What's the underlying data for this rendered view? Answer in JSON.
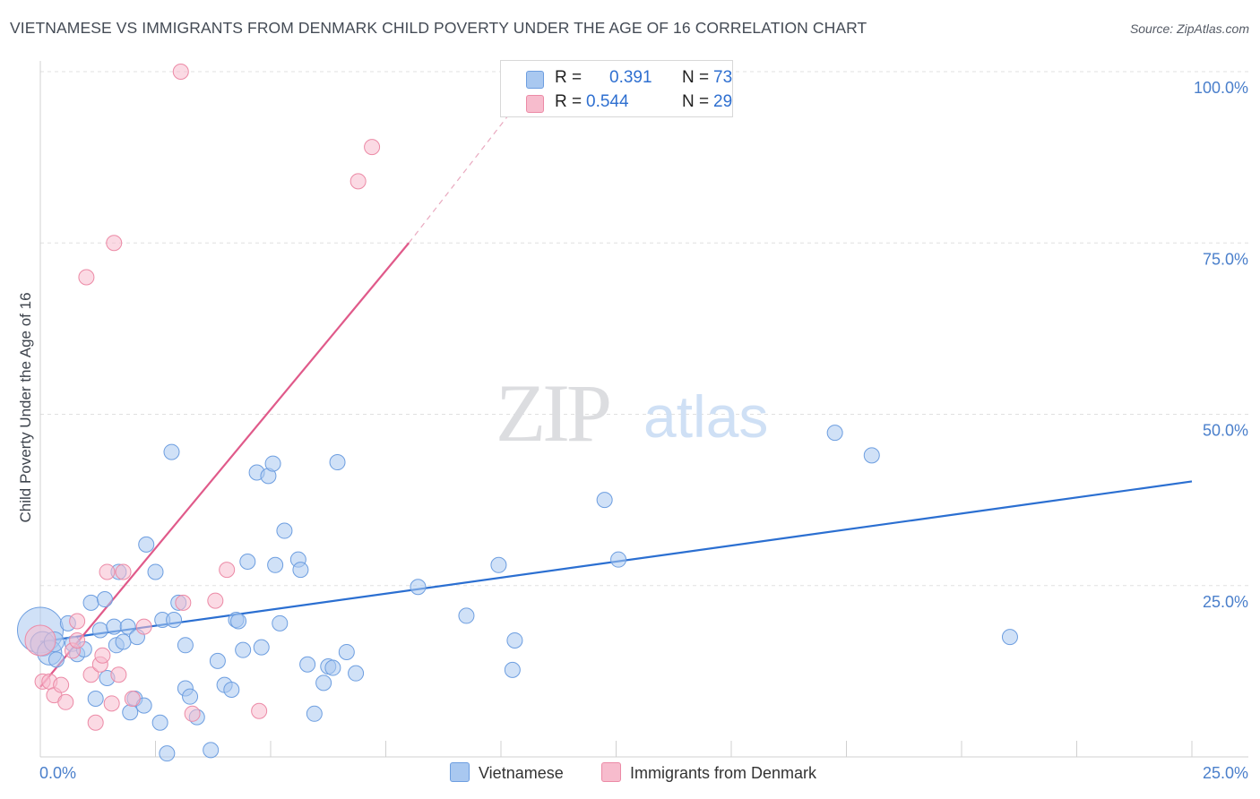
{
  "title": "VIETNAMESE VS IMMIGRANTS FROM DENMARK CHILD POVERTY UNDER THE AGE OF 16 CORRELATION CHART",
  "source": "Source: ZipAtlas.com",
  "watermark": {
    "zip": "ZIP",
    "atlas": "atlas"
  },
  "legend": {
    "rows": [
      {
        "r_label": "R =",
        "r_value": "0.391",
        "n_label": "N =",
        "n_value": "73",
        "color": "#a9c8f0",
        "border": "#6d9ee0"
      },
      {
        "r_label": "R =",
        "r_value": "0.544",
        "n_label": "N =",
        "n_value": "29",
        "color": "#f7bccd",
        "border": "#ec8aa6"
      }
    ]
  },
  "bottom_legend": [
    {
      "label": "Vietnamese",
      "color": "#a9c8f0",
      "border": "#6d9ee0"
    },
    {
      "label": "Immigrants from Denmark",
      "color": "#f7bccd",
      "border": "#ec8aa6"
    }
  ],
  "chart_data": {
    "type": "scatter",
    "title": "VIETNAMESE VS IMMIGRANTS FROM DENMARK CHILD POVERTY UNDER THE AGE OF 16 CORRELATION CHART",
    "xlabel": "",
    "ylabel": "Child Poverty Under the Age of 16",
    "xlim": [
      0,
      25
    ],
    "ylim": [
      0,
      100
    ],
    "x_ticks": [
      "0.0%",
      "25.0%"
    ],
    "y_ticks": [
      {
        "value": 25,
        "label": "25.0%"
      },
      {
        "value": 50,
        "label": "50.0%"
      },
      {
        "value": 75,
        "label": "75.0%"
      },
      {
        "value": 100,
        "label": "100.0%"
      }
    ],
    "grid": true,
    "series": [
      {
        "name": "Vietnamese",
        "color": "#6d9ee0",
        "fill": "#a9c8f0",
        "trend": {
          "x0": 0,
          "y0": 16.8,
          "x1": 25,
          "y1": 40.2,
          "color": "#2b6fd1"
        },
        "points": [
          [
            0.0,
            18.5,
            3.0
          ],
          [
            0.05,
            16.5,
            1.6
          ],
          [
            0.2,
            15.2,
            1.6
          ],
          [
            0.3,
            16.8,
            1.3
          ],
          [
            0.35,
            14.2,
            1.0
          ],
          [
            0.6,
            19.5,
            1.0
          ],
          [
            0.7,
            16.5,
            1.0
          ],
          [
            0.8,
            15.0,
            1.0
          ],
          [
            0.95,
            15.7,
            1.0
          ],
          [
            1.1,
            22.5,
            1.0
          ],
          [
            1.2,
            8.5,
            1.0
          ],
          [
            1.3,
            18.5,
            1.0
          ],
          [
            1.4,
            23.0,
            1.0
          ],
          [
            1.45,
            11.5,
            1.0
          ],
          [
            1.6,
            19.0,
            1.0
          ],
          [
            1.65,
            16.3,
            1.0
          ],
          [
            1.7,
            27.0,
            1.0
          ],
          [
            1.8,
            16.8,
            1.0
          ],
          [
            1.9,
            19.0,
            1.0
          ],
          [
            1.95,
            6.5,
            1.0
          ],
          [
            2.05,
            8.5,
            1.0
          ],
          [
            2.1,
            17.5,
            1.0
          ],
          [
            2.25,
            7.5,
            1.0
          ],
          [
            2.3,
            31.0,
            1.0
          ],
          [
            2.5,
            27.0,
            1.0
          ],
          [
            2.6,
            5.0,
            1.0
          ],
          [
            2.65,
            20.0,
            1.0
          ],
          [
            2.75,
            0.5,
            1.0
          ],
          [
            2.85,
            44.5,
            1.0
          ],
          [
            2.9,
            20.0,
            1.0
          ],
          [
            3.0,
            22.5,
            1.0
          ],
          [
            3.15,
            16.3,
            1.0
          ],
          [
            3.15,
            10.0,
            1.0
          ],
          [
            3.25,
            8.8,
            1.0
          ],
          [
            3.4,
            5.8,
            1.0
          ],
          [
            3.7,
            1.0,
            1.0
          ],
          [
            3.85,
            14.0,
            1.0
          ],
          [
            4.0,
            10.5,
            1.0
          ],
          [
            4.15,
            9.8,
            1.0
          ],
          [
            4.25,
            20.0,
            1.0
          ],
          [
            4.3,
            19.8,
            1.0
          ],
          [
            4.4,
            15.6,
            1.0
          ],
          [
            4.5,
            28.5,
            1.0
          ],
          [
            4.7,
            41.5,
            1.0
          ],
          [
            4.8,
            16.0,
            1.0
          ],
          [
            4.95,
            41.0,
            1.0
          ],
          [
            5.05,
            42.8,
            1.0
          ],
          [
            5.1,
            28.0,
            1.0
          ],
          [
            5.2,
            19.5,
            1.0
          ],
          [
            5.3,
            33.0,
            1.0
          ],
          [
            5.6,
            28.8,
            1.0
          ],
          [
            5.65,
            27.3,
            1.0
          ],
          [
            5.8,
            13.5,
            1.0
          ],
          [
            5.95,
            6.3,
            1.0
          ],
          [
            6.15,
            10.8,
            1.0
          ],
          [
            6.25,
            13.2,
            1.0
          ],
          [
            6.35,
            13.0,
            1.0
          ],
          [
            6.45,
            43.0,
            1.0
          ],
          [
            6.65,
            15.3,
            1.0
          ],
          [
            6.85,
            12.2,
            1.0
          ],
          [
            8.2,
            24.8,
            1.0
          ],
          [
            9.25,
            20.6,
            1.0
          ],
          [
            9.95,
            28.0,
            1.0
          ],
          [
            10.25,
            12.7,
            1.0
          ],
          [
            10.3,
            17.0,
            1.0
          ],
          [
            12.25,
            37.5,
            1.0
          ],
          [
            12.55,
            28.8,
            1.0
          ],
          [
            17.25,
            47.3,
            1.0
          ],
          [
            18.05,
            44.0,
            1.0
          ],
          [
            21.05,
            17.5,
            1.0
          ]
        ]
      },
      {
        "name": "Immigrants from Denmark",
        "color": "#ec8aa6",
        "fill": "#f7bccd",
        "trend": {
          "x0": 0,
          "y0": 10.2,
          "x1": 8.0,
          "y1": 75.0,
          "dash_to_x": 10.9,
          "dash_to_y": 100.0,
          "color": "#e05a8a"
        },
        "points": [
          [
            0.0,
            17.0,
            2.0
          ],
          [
            0.05,
            11.0,
            1.0
          ],
          [
            0.2,
            11.0,
            1.0
          ],
          [
            0.3,
            9.0,
            1.0
          ],
          [
            0.45,
            10.5,
            1.0
          ],
          [
            0.55,
            8.0,
            1.0
          ],
          [
            0.7,
            15.5,
            1.0
          ],
          [
            0.8,
            17.0,
            1.0
          ],
          [
            0.8,
            19.8,
            1.0
          ],
          [
            1.0,
            70.0,
            1.0
          ],
          [
            1.1,
            12.0,
            1.0
          ],
          [
            1.2,
            5.0,
            1.0
          ],
          [
            1.3,
            13.5,
            1.0
          ],
          [
            1.35,
            14.8,
            1.0
          ],
          [
            1.45,
            27.0,
            1.0
          ],
          [
            1.55,
            7.8,
            1.0
          ],
          [
            1.6,
            75.0,
            1.0
          ],
          [
            1.7,
            12.0,
            1.0
          ],
          [
            1.8,
            27.0,
            1.0
          ],
          [
            2.0,
            8.5,
            1.0
          ],
          [
            2.25,
            19.0,
            1.0
          ],
          [
            3.05,
            100.0,
            1.0
          ],
          [
            3.1,
            22.5,
            1.0
          ],
          [
            3.3,
            6.3,
            1.0
          ],
          [
            3.8,
            22.8,
            1.0
          ],
          [
            4.05,
            27.3,
            1.0
          ],
          [
            4.75,
            6.7,
            1.0
          ],
          [
            6.9,
            84.0,
            1.0
          ],
          [
            7.2,
            89.0,
            1.0
          ]
        ]
      }
    ]
  }
}
